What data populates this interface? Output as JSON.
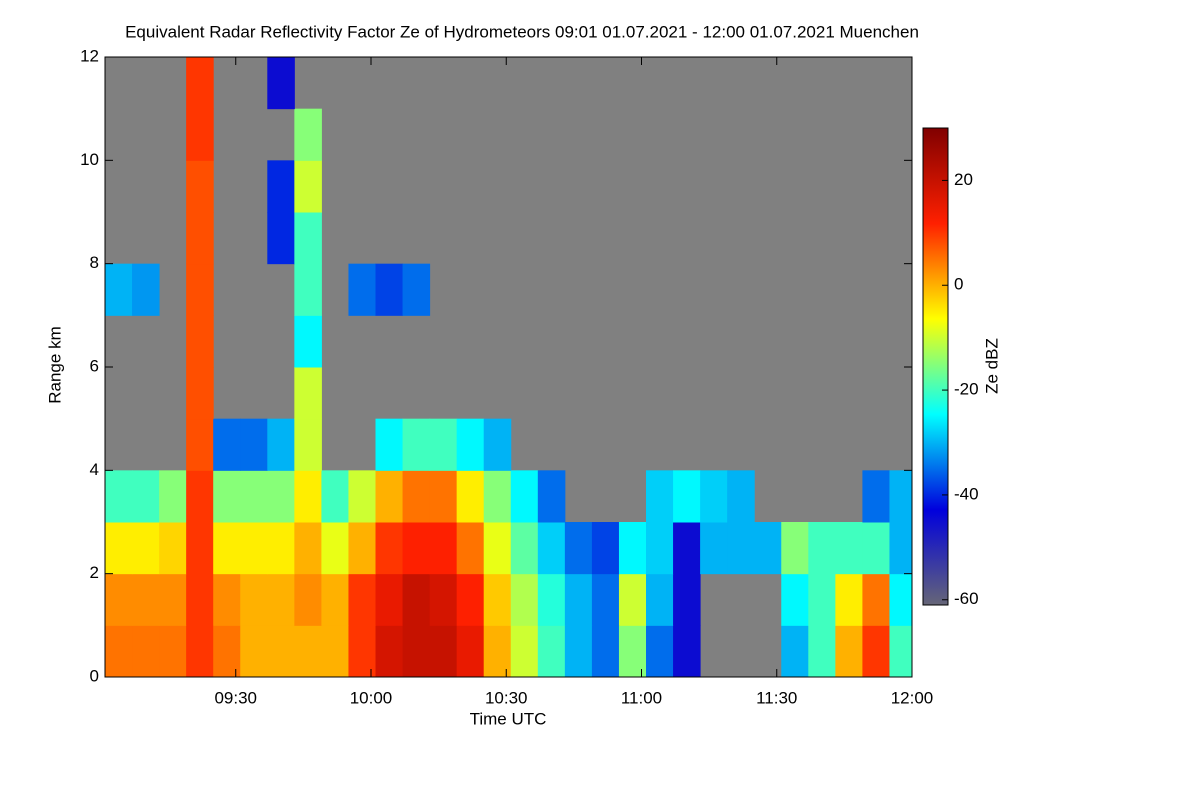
{
  "chart_data": {
    "type": "heatmap",
    "title": "Equivalent Radar Reflectivity Factor Ze of Hydrometeors   09:01 01.07.2021 - 12:00 01.07.2021 Muenchen",
    "xlabel": "Time UTC",
    "ylabel": "Range km",
    "colorbar_label": "Ze dBZ",
    "xlim": [
      "09:01",
      "12:00"
    ],
    "xticks": [
      "09:30",
      "10:00",
      "10:30",
      "11:00",
      "11:30",
      "12:00"
    ],
    "ylim": [
      0,
      12
    ],
    "yticks": [
      0,
      2,
      4,
      6,
      8,
      10,
      12
    ],
    "zlim": [
      -61,
      30
    ],
    "zticks": [
      20,
      0,
      -20,
      -40,
      -60
    ],
    "colorscale": [
      "#666677",
      "#0000dd",
      "#00ffff",
      "#ffff00",
      "#ff2000",
      "#800000"
    ],
    "background": "#808080",
    "x": [
      "09:01",
      "09:07",
      "09:13",
      "09:19",
      "09:25",
      "09:31",
      "09:37",
      "09:43",
      "09:49",
      "09:55",
      "10:01",
      "10:07",
      "10:13",
      "10:19",
      "10:25",
      "10:31",
      "10:37",
      "10:43",
      "10:49",
      "10:55",
      "11:01",
      "11:07",
      "11:13",
      "11:19",
      "11:25",
      "11:31",
      "11:37",
      "11:43",
      "11:49",
      "11:55"
    ],
    "ybins": [
      0,
      1,
      2,
      3,
      4,
      5,
      6,
      7,
      8,
      9,
      10,
      11,
      12
    ],
    "z": [
      [
        5,
        5,
        5,
        10,
        5,
        0,
        0,
        0,
        0,
        10,
        18,
        20,
        20,
        15,
        0,
        -10,
        -20,
        -30,
        -35,
        -15,
        -35,
        -45,
        null,
        null,
        null,
        -30,
        -20,
        0,
        10,
        -20
      ],
      [
        3,
        3,
        3,
        10,
        3,
        0,
        0,
        3,
        0,
        10,
        15,
        20,
        18,
        12,
        -2,
        -12,
        -22,
        -30,
        -35,
        -10,
        -30,
        -45,
        null,
        null,
        null,
        -25,
        -20,
        -5,
        5,
        -25
      ],
      [
        -5,
        -5,
        -3,
        10,
        -5,
        -5,
        -5,
        0,
        -8,
        0,
        10,
        12,
        12,
        5,
        -8,
        -18,
        -28,
        -35,
        -38,
        -25,
        -28,
        -45,
        -30,
        -30,
        -30,
        -15,
        -20,
        -20,
        -20,
        -30
      ],
      [
        -20,
        -20,
        -15,
        10,
        -15,
        -15,
        -15,
        -5,
        -20,
        -10,
        0,
        5,
        5,
        -5,
        -15,
        -25,
        -35,
        null,
        null,
        null,
        -28,
        -25,
        -28,
        -30,
        null,
        null,
        null,
        null,
        -35,
        -30
      ],
      [
        null,
        null,
        null,
        8,
        -35,
        -35,
        -30,
        -10,
        null,
        null,
        -25,
        -20,
        -20,
        -25,
        -30,
        null,
        null,
        null,
        null,
        null,
        null,
        null,
        null,
        null,
        null,
        null,
        null,
        null,
        null,
        null
      ],
      [
        null,
        null,
        null,
        8,
        null,
        null,
        null,
        -10,
        null,
        null,
        null,
        null,
        null,
        null,
        null,
        null,
        null,
        null,
        null,
        null,
        null,
        null,
        null,
        null,
        null,
        null,
        null,
        null,
        null,
        null
      ],
      [
        null,
        null,
        null,
        8,
        null,
        null,
        null,
        -25,
        null,
        null,
        null,
        null,
        null,
        null,
        null,
        null,
        null,
        null,
        null,
        null,
        null,
        null,
        null,
        null,
        null,
        null,
        null,
        null,
        null,
        null
      ],
      [
        -30,
        -32,
        null,
        8,
        null,
        null,
        null,
        -20,
        null,
        -35,
        -38,
        -35,
        null,
        null,
        null,
        null,
        null,
        null,
        null,
        null,
        null,
        null,
        null,
        null,
        null,
        null,
        null,
        null,
        null,
        null
      ],
      [
        null,
        null,
        null,
        8,
        null,
        null,
        -40,
        -20,
        null,
        null,
        null,
        null,
        null,
        null,
        null,
        null,
        null,
        null,
        null,
        null,
        null,
        null,
        null,
        null,
        null,
        null,
        null,
        null,
        null,
        null
      ],
      [
        null,
        null,
        null,
        8,
        null,
        null,
        -40,
        -10,
        null,
        null,
        null,
        null,
        null,
        null,
        null,
        null,
        null,
        null,
        null,
        null,
        null,
        null,
        null,
        null,
        null,
        null,
        null,
        null,
        null,
        null
      ],
      [
        null,
        null,
        null,
        10,
        null,
        null,
        null,
        -15,
        null,
        null,
        null,
        null,
        null,
        null,
        null,
        null,
        null,
        null,
        null,
        null,
        null,
        null,
        null,
        null,
        null,
        null,
        null,
        null,
        null,
        null
      ],
      [
        null,
        null,
        null,
        10,
        null,
        null,
        -45,
        null,
        null,
        null,
        null,
        null,
        null,
        null,
        null,
        null,
        null,
        null,
        null,
        null,
        null,
        null,
        null,
        null,
        null,
        null,
        null,
        null,
        null,
        null
      ]
    ]
  }
}
